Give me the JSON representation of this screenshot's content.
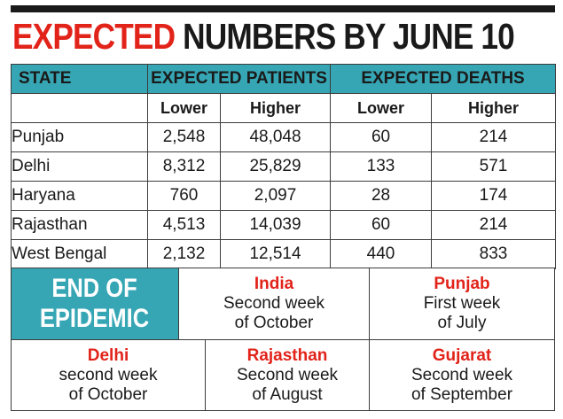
{
  "headline": {
    "part1": "EXPECTED",
    "part2": "NUMBERS BY JUNE 10"
  },
  "table": {
    "headers": {
      "state": "STATE",
      "patients": "EXPECTED PATIENTS",
      "deaths": "EXPECTED DEATHS"
    },
    "subheaders": [
      "Lower",
      "Higher",
      "Lower",
      "Higher"
    ],
    "rows": [
      {
        "state": "Punjab",
        "p_lower": "2,548",
        "p_higher": "48,048",
        "d_lower": "60",
        "d_higher": "214"
      },
      {
        "state": "Delhi",
        "p_lower": "8,312",
        "p_higher": "25,829",
        "d_lower": "133",
        "d_higher": "571"
      },
      {
        "state": "Haryana",
        "p_lower": "760",
        "p_higher": "2,097",
        "d_lower": "28",
        "d_higher": "174"
      },
      {
        "state": "Rajasthan",
        "p_lower": "4,513",
        "p_higher": "14,039",
        "d_lower": "60",
        "d_higher": "214"
      },
      {
        "state": "West Bengal",
        "p_lower": "2,132",
        "p_higher": "12,514",
        "d_lower": "440",
        "d_higher": "833"
      }
    ]
  },
  "epidemic": {
    "title": "END OF\nEPIDEMIC",
    "entries": [
      {
        "place": "India",
        "line1": "Second week",
        "line2": "of October"
      },
      {
        "place": "Punjab",
        "line1": "First week",
        "line2": "of July"
      },
      {
        "place": "Delhi",
        "line1": "second week",
        "line2": "of October"
      },
      {
        "place": "Rajasthan",
        "line1": "Second week",
        "line2": "of August"
      },
      {
        "place": "Gujarat",
        "line1": "Second week",
        "line2": "of September"
      }
    ]
  },
  "colors": {
    "accent_red": "#e2231a",
    "header_teal": "#36a6b4",
    "panel_light": "#d6ecf0"
  }
}
